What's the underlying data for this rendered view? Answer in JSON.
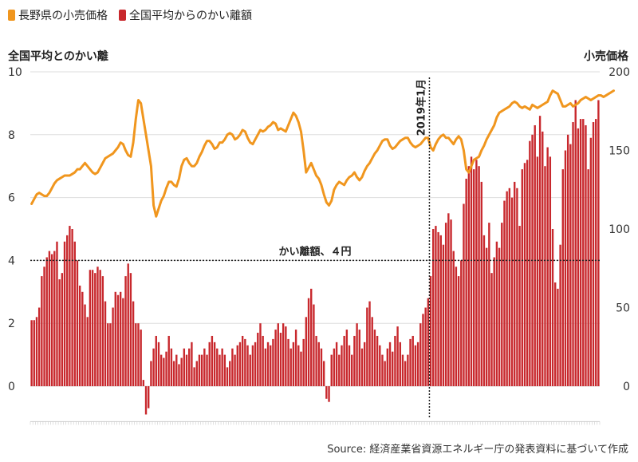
{
  "legend": [
    {
      "label": "長野県の小売価格",
      "color": "#f0961e"
    },
    {
      "label": "全国平均からのかい離額",
      "color": "#c8282d"
    }
  ],
  "left_axis_title": "全国平均とのかい離",
  "right_axis_title": "小売価格",
  "source": "Source: 経済産業省資源エネルギー庁の発表資料に基づいて作成",
  "chart_data": {
    "type": "bar+line",
    "left_axis": {
      "ticks": [
        "10",
        "8",
        "6",
        "4",
        "2",
        "0"
      ],
      "range": [
        -1,
        10
      ]
    },
    "right_axis": {
      "ticks": [
        "200",
        "150",
        "100",
        "50",
        "0"
      ],
      "range": [
        -20,
        200
      ]
    },
    "annotations": {
      "vertical_line_label": "2019年1月",
      "horizontal_line_label": "かい離額、４円",
      "horizontal_line_value": 4,
      "vertical_line_index": 157
    },
    "series": [
      {
        "name": "全国平均からのかい離額",
        "type": "bar",
        "color": "#c8282d",
        "values": [
          2.1,
          2.1,
          2.2,
          2.5,
          3.5,
          3.8,
          4.1,
          4.3,
          4.2,
          4.3,
          4.6,
          3.4,
          3.6,
          4.6,
          4.8,
          5.1,
          5.0,
          4.6,
          4.0,
          3.2,
          3.0,
          2.6,
          2.2,
          3.7,
          3.7,
          3.6,
          3.8,
          3.7,
          3.5,
          2.7,
          2.0,
          2.0,
          2.5,
          3.0,
          2.9,
          3.0,
          2.8,
          3.5,
          3.9,
          3.6,
          2.7,
          2.0,
          2.0,
          1.8,
          0.2,
          -0.9,
          -0.7,
          0.8,
          1.2,
          1.6,
          1.4,
          1.0,
          0.9,
          1.1,
          1.6,
          1.2,
          0.8,
          1.0,
          0.7,
          0.9,
          1.2,
          1.0,
          1.2,
          1.4,
          0.6,
          0.8,
          1.0,
          1.0,
          1.2,
          1.0,
          1.4,
          1.6,
          1.4,
          1.2,
          1.0,
          1.2,
          1.0,
          0.6,
          0.8,
          1.2,
          1.0,
          1.3,
          1.4,
          1.6,
          1.5,
          1.3,
          1.0,
          1.3,
          1.4,
          1.7,
          2.0,
          1.6,
          1.2,
          1.4,
          1.3,
          1.5,
          1.8,
          2.0,
          1.7,
          2.0,
          1.9,
          1.5,
          1.2,
          1.4,
          1.8,
          1.3,
          1.1,
          1.5,
          2.2,
          2.8,
          3.1,
          2.6,
          1.6,
          1.4,
          1.2,
          0.8,
          -0.4,
          -0.5,
          1.0,
          1.2,
          1.4,
          1.0,
          1.3,
          1.6,
          1.8,
          1.3,
          1.0,
          1.6,
          2.0,
          1.8,
          1.2,
          1.4,
          2.5,
          2.7,
          2.2,
          1.8,
          1.6,
          1.3,
          1.0,
          0.8,
          1.2,
          1.4,
          1.1,
          1.6,
          1.9,
          1.4,
          1.0,
          0.8,
          1.0,
          1.5,
          1.6,
          1.3,
          1.4,
          2.0,
          2.3,
          2.5,
          2.8,
          3.5,
          5.0,
          5.1,
          4.9,
          4.8,
          4.5,
          5.2,
          5.5,
          5.3,
          4.3,
          3.8,
          3.5,
          4.0,
          5.8,
          6.6,
          7.0,
          7.3,
          6.9,
          7.2,
          7.0,
          6.5,
          4.8,
          4.4,
          5.2,
          3.6,
          4.1,
          4.6,
          4.4,
          5.2,
          5.9,
          6.2,
          6.3,
          6.0,
          6.5,
          6.3,
          5.1,
          6.9,
          7.1,
          7.2,
          7.8,
          8.0,
          8.3,
          7.3,
          8.6,
          8.1,
          7.0,
          7.6,
          7.3,
          5.0,
          3.3,
          3.1,
          4.5,
          6.9,
          7.5,
          8.0,
          7.7,
          8.4,
          9.1,
          8.2,
          8.5,
          8.5,
          8.3,
          6.9,
          7.9,
          8.4,
          8.5,
          9.1
        ]
      },
      {
        "name": "長野県の小売価格",
        "type": "line",
        "color": "#f0961e",
        "values": [
          116,
          119,
          122,
          123,
          122,
          121,
          121,
          123,
          126,
          129,
          131,
          132,
          133,
          134,
          134,
          134,
          135,
          136,
          138,
          138,
          140,
          142,
          140,
          138,
          136,
          135,
          136,
          139,
          142,
          145,
          146,
          147,
          148,
          150,
          152,
          155,
          154,
          150,
          147,
          146,
          155,
          170,
          182,
          180,
          170,
          160,
          150,
          140,
          115,
          108,
          113,
          118,
          121,
          126,
          130,
          130,
          128,
          127,
          132,
          140,
          144,
          145,
          142,
          140,
          140,
          142,
          146,
          149,
          153,
          156,
          156,
          154,
          151,
          152,
          155,
          155,
          157,
          160,
          161,
          160,
          157,
          158,
          160,
          163,
          162,
          158,
          155,
          154,
          157,
          160,
          163,
          162,
          163,
          165,
          166,
          168,
          167,
          163,
          164,
          163,
          162,
          166,
          170,
          174,
          172,
          168,
          162,
          150,
          136,
          139,
          142,
          138,
          134,
          132,
          128,
          122,
          117,
          115,
          118,
          125,
          128,
          130,
          129,
          128,
          131,
          133,
          134,
          136,
          133,
          131,
          133,
          137,
          140,
          142,
          145,
          148,
          150,
          153,
          156,
          157,
          157,
          153,
          151,
          152,
          154,
          156,
          157,
          158,
          158,
          155,
          153,
          152,
          153,
          154,
          156,
          158,
          158,
          152,
          150,
          154,
          157,
          159,
          160,
          158,
          158,
          156,
          154,
          157,
          159,
          157,
          150,
          138,
          136,
          140,
          144,
          145,
          146,
          150,
          153,
          157,
          160,
          163,
          166,
          171,
          174,
          175,
          176,
          177,
          178,
          180,
          181,
          180,
          178,
          177,
          178,
          177,
          176,
          179,
          178,
          177,
          178,
          179,
          180,
          181,
          185,
          188,
          187,
          186,
          182,
          178,
          178,
          179,
          180,
          178,
          179,
          180,
          182,
          183,
          184,
          183,
          182,
          183,
          184,
          185,
          185,
          184,
          185,
          186,
          187,
          188
        ]
      }
    ]
  }
}
